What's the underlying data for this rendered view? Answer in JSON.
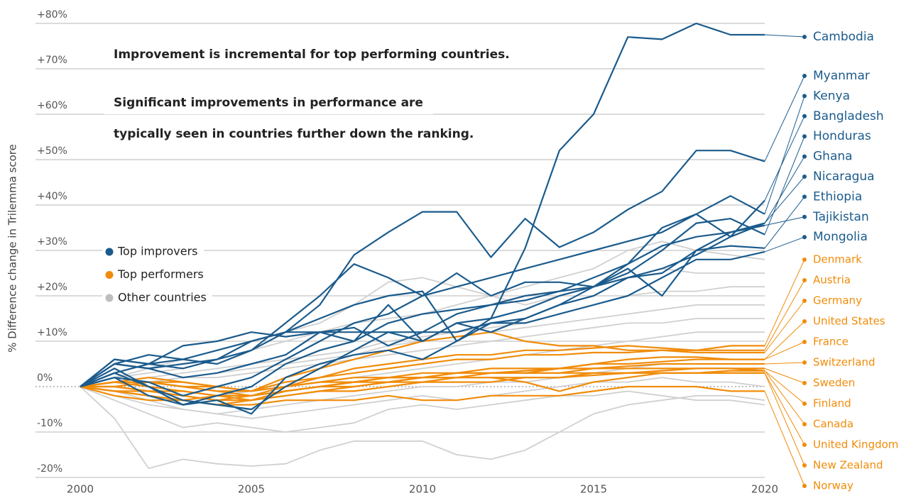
{
  "chart_data": {
    "type": "line",
    "y_axis_label": "% Difference change in Trilemma score",
    "annotations": [
      "Improvement is incremental for top performing countries.",
      "Significant improvements in performance are",
      "typically seen in countries further down the ranking."
    ],
    "legend": [
      {
        "label": "Top improvers",
        "color": "#1b5b8c"
      },
      {
        "label": "Top performers",
        "color": "#f08c0a"
      },
      {
        "label": "Other countries",
        "color": "#bdbdbd"
      }
    ],
    "x": [
      2000,
      2001,
      2002,
      2003,
      2004,
      2005,
      2006,
      2007,
      2008,
      2009,
      2010,
      2011,
      2012,
      2013,
      2014,
      2015,
      2016,
      2017,
      2018,
      2019,
      2020
    ],
    "xlim": [
      2000,
      2020
    ],
    "xticks": [
      2000,
      2005,
      2010,
      2015,
      2020
    ],
    "ylim": [
      -20,
      80
    ],
    "yticks": [
      {
        "value": 80,
        "label": "+80%"
      },
      {
        "value": 70,
        "label": "+70%"
      },
      {
        "value": 60,
        "label": "+60%"
      },
      {
        "value": 50,
        "label": "+50%"
      },
      {
        "value": 40,
        "label": "+40%"
      },
      {
        "value": 30,
        "label": "+30%"
      },
      {
        "value": 20,
        "label": "+20%"
      },
      {
        "value": 10,
        "label": "+10%"
      },
      {
        "value": 0,
        "label": "0%"
      },
      {
        "value": -10,
        "label": "-10%"
      },
      {
        "value": -20,
        "label": "-20%"
      }
    ],
    "grid": true,
    "series": [
      {
        "color": "#d0d0d0",
        "values": [
          0,
          -7,
          -18,
          -16,
          -17,
          -17.5,
          -17,
          -14,
          -12,
          -12,
          -12,
          -15,
          -16,
          -14,
          -10,
          -6,
          -4,
          -3,
          -2,
          -2,
          -3
        ]
      },
      {
        "color": "#d0d0d0",
        "values": [
          0,
          -3,
          -6,
          -9,
          -8,
          -9,
          -10,
          -9,
          -8,
          -5,
          -4,
          -5,
          -4,
          -3,
          -2,
          -2,
          -1,
          -2,
          -3,
          -3,
          -4
        ]
      },
      {
        "color": "#d0d0d0",
        "values": [
          0,
          2,
          4,
          6,
          8,
          10,
          12,
          14,
          18,
          23,
          24,
          22,
          20,
          18,
          20,
          22,
          24,
          26,
          25,
          25,
          25
        ]
      },
      {
        "color": "#d0d0d0",
        "values": [
          0,
          1,
          2,
          3,
          4,
          5,
          6,
          7,
          8,
          10,
          11,
          12,
          13,
          14,
          16,
          18,
          20,
          21,
          21,
          22,
          22
        ]
      },
      {
        "color": "#d0d0d0",
        "values": [
          0,
          0,
          1,
          2,
          3,
          4,
          5,
          6,
          7,
          9,
          10,
          11,
          12,
          13,
          14,
          15,
          16,
          17,
          18,
          18,
          18
        ]
      },
      {
        "color": "#d0d0d0",
        "values": [
          0,
          1,
          1,
          2,
          2,
          3,
          4,
          5,
          6,
          7,
          8,
          9,
          10,
          11,
          12,
          13,
          14,
          14,
          15,
          15,
          15
        ]
      },
      {
        "color": "#d0d0d0",
        "values": [
          0,
          -1,
          -2,
          -3,
          -2,
          -1,
          0,
          1,
          2,
          3,
          4,
          5,
          6,
          7,
          8,
          9,
          10,
          11,
          12,
          12,
          12
        ]
      },
      {
        "color": "#d0d0d0",
        "values": [
          0,
          -2,
          -4,
          -5,
          -6,
          -5,
          -4,
          -3,
          -2,
          -1,
          0,
          0,
          1,
          1,
          2,
          3,
          4,
          5,
          5,
          5,
          5
        ]
      },
      {
        "color": "#d0d0d0",
        "values": [
          0,
          2,
          3,
          4,
          6,
          8,
          10,
          12,
          14,
          15,
          16,
          18,
          20,
          22,
          24,
          26,
          30,
          32,
          30,
          29,
          28
        ]
      },
      {
        "color": "#d0d0d0",
        "values": [
          0,
          -1,
          -3,
          -5,
          -6,
          -7,
          -6,
          -5,
          -4,
          -3,
          -2,
          -3,
          -2,
          -1,
          0,
          1,
          1,
          2,
          1,
          1,
          0
        ]
      },
      {
        "name": "Denmark",
        "color": "#f08c0a",
        "values": [
          0,
          1,
          2,
          1,
          0,
          -1,
          2,
          4,
          6,
          8,
          10,
          11,
          12,
          10,
          9,
          9,
          8,
          8,
          8,
          9,
          9
        ]
      },
      {
        "name": "Austria",
        "color": "#f08c0a",
        "values": [
          0,
          1,
          1,
          0,
          -1,
          -2,
          0,
          2,
          4,
          5,
          6,
          7,
          7,
          8,
          8,
          8.5,
          9,
          8.5,
          8,
          8,
          8
        ]
      },
      {
        "name": "Germany",
        "color": "#f08c0a",
        "values": [
          0,
          0,
          1,
          1,
          0,
          -1,
          1,
          2,
          3,
          4,
          5,
          6,
          6,
          7,
          7,
          7.5,
          7.5,
          8,
          7.5,
          7.5,
          7.5
        ]
      },
      {
        "name": "United States",
        "color": "#f08c0a",
        "values": [
          0,
          -1,
          -2,
          -3,
          -4,
          -3,
          -2,
          -1,
          0,
          1,
          2,
          3,
          3,
          3.5,
          4,
          5,
          6,
          6.5,
          6.5,
          6,
          6
        ]
      },
      {
        "name": "France",
        "color": "#f08c0a",
        "values": [
          0,
          1,
          0,
          -1,
          -2,
          -2,
          -1,
          0,
          1,
          2,
          3,
          3,
          4,
          4,
          4,
          5,
          5,
          5.5,
          6,
          6,
          6
        ]
      },
      {
        "name": "Switzerland",
        "color": "#f08c0a",
        "values": [
          0,
          0,
          -1,
          -1,
          -2,
          -3,
          -1,
          0,
          1,
          2,
          2,
          3,
          3,
          3,
          4,
          4,
          4.5,
          5,
          5,
          5,
          5
        ]
      },
      {
        "name": "Sweden",
        "color": "#f08c0a",
        "values": [
          0,
          1,
          1,
          0,
          -1,
          -1,
          0,
          1,
          2,
          2,
          2,
          3,
          3,
          3,
          3,
          4,
          4,
          4,
          4,
          4,
          4
        ]
      },
      {
        "name": "Finland",
        "color": "#f08c0a",
        "values": [
          0,
          -1,
          -1,
          -2,
          -3,
          -3,
          -2,
          -1,
          -1,
          0,
          1,
          1,
          1,
          2,
          2,
          3,
          3,
          3.5,
          4,
          4,
          3.5
        ]
      },
      {
        "name": "Canada",
        "color": "#f08c0a",
        "values": [
          0,
          0,
          -1,
          -2,
          -3,
          -2,
          -1,
          0,
          0,
          1,
          1,
          2,
          2,
          2,
          2,
          2.5,
          3,
          3,
          3,
          3.5,
          3.5
        ]
      },
      {
        "name": "United Kingdom",
        "color": "#f08c0a",
        "values": [
          0,
          -1,
          -2,
          -3,
          -2,
          -2,
          -1,
          0,
          1,
          1,
          2,
          2,
          2,
          1,
          -1,
          1,
          2,
          3,
          3,
          3,
          3
        ]
      },
      {
        "name": "New Zealand",
        "color": "#f08c0a",
        "values": [
          0,
          1,
          1,
          0,
          0,
          -1,
          0,
          1,
          1,
          2,
          2,
          2,
          3,
          3,
          3,
          3,
          3,
          3,
          3,
          3,
          3
        ]
      },
      {
        "name": "Norway",
        "color": "#f08c0a",
        "values": [
          0,
          -2,
          -3,
          -3,
          -4,
          -4,
          -3,
          -3,
          -3,
          -2,
          -3,
          -3,
          -2,
          -2,
          -2,
          -1,
          0,
          0,
          0,
          -1,
          -1
        ]
      },
      {
        "name": "Cambodia",
        "color": "#1b5b8c",
        "values": [
          0,
          3,
          5,
          6,
          8,
          10,
          12,
          15,
          18,
          20,
          21,
          10,
          15,
          30.5,
          52,
          60,
          77,
          76.5,
          80,
          77.5,
          77.5
        ]
      },
      {
        "name": "Myanmar",
        "color": "#1b5b8c",
        "values": [
          0,
          5,
          4,
          5,
          6,
          8,
          12,
          18,
          29,
          34,
          38.5,
          38.5,
          28.5,
          37,
          30.7,
          34,
          39,
          43,
          52,
          52,
          49.6
        ]
      },
      {
        "name": "Kenya",
        "color": "#1b5b8c",
        "values": [
          0,
          2,
          1,
          -2,
          0,
          2,
          6,
          10,
          14,
          16,
          20,
          22,
          24,
          26,
          28,
          30,
          32,
          34,
          38,
          42,
          38
        ]
      },
      {
        "name": "Bangladesh",
        "color": "#1b5b8c",
        "values": [
          0,
          6,
          5,
          9,
          10,
          12,
          11,
          12,
          13,
          9,
          12,
          16,
          18,
          20,
          21,
          22,
          27,
          35,
          38,
          33,
          41
        ]
      },
      {
        "name": "Honduras",
        "color": "#1b5b8c",
        "values": [
          0,
          5,
          7,
          6,
          5,
          8,
          14,
          20,
          27,
          24,
          20,
          25,
          20,
          23,
          23,
          22,
          25,
          30,
          36,
          37,
          33.5
        ]
      },
      {
        "name": "Ghana",
        "color": "#1b5b8c",
        "values": [
          0,
          4,
          0,
          -4,
          -2,
          0,
          5,
          8,
          10,
          14,
          16,
          17,
          18,
          19,
          21,
          24,
          27,
          31,
          33,
          34,
          36
        ]
      },
      {
        "name": "Nicaragua",
        "color": "#1b5b8c",
        "values": [
          0,
          3,
          0,
          -3,
          -4,
          -5,
          0,
          4,
          8,
          12,
          10,
          14,
          15,
          17,
          20,
          22,
          24,
          26,
          29,
          33,
          36
        ]
      },
      {
        "name": "Ethiopia",
        "color": "#1b5b8c",
        "values": [
          0,
          2,
          -2,
          -4,
          -3,
          -6,
          2,
          5,
          7,
          8,
          6,
          10,
          14,
          15,
          18,
          20,
          24,
          25,
          30,
          31,
          30.5
        ]
      },
      {
        "name": "Tajikistan",
        "color": "#1b5b8c",
        "values": [
          0,
          5,
          4,
          2,
          3,
          5,
          7,
          12,
          10,
          18,
          10,
          14,
          12,
          15,
          18,
          22,
          26,
          20,
          30,
          34,
          35.5
        ]
      },
      {
        "name": "Mongolia",
        "color": "#1b5b8c",
        "values": [
          0,
          6,
          5,
          4,
          6,
          10,
          12,
          12,
          12,
          12,
          12,
          12,
          14,
          14,
          16,
          18,
          20,
          24,
          28,
          28,
          29.7
        ]
      }
    ]
  }
}
